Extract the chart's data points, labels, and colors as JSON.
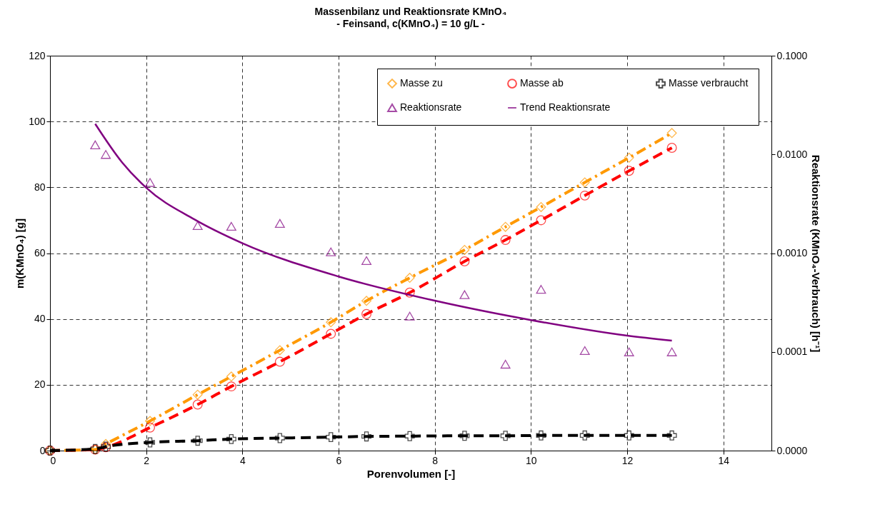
{
  "chart_data": {
    "type": "line",
    "title": "Massenbilanz und Reaktionsrate KMnO₄",
    "subtitle": "- Feinsand, c(KMnO₄) = 10 g/L -",
    "xlabel": "Porenvolumen [-]",
    "ylabel": "m(KMnO₄) [g]",
    "y2label": "Reaktionsrate (KMnO₄-Verbrauch) [h⁻¹]",
    "x": [
      0,
      0.94,
      1.16,
      2.08,
      3.07,
      3.77,
      4.78,
      5.84,
      6.58,
      7.48,
      8.62,
      9.47,
      10.21,
      11.12,
      12.04,
      12.93
    ],
    "series": [
      {
        "name": "Masse zu",
        "color": "#ff9900",
        "marker": "diamond",
        "line_style": "dashdot",
        "values": [
          0,
          0.3,
          2,
          9,
          17,
          22.5,
          30.5,
          39,
          45.5,
          52.5,
          61,
          68,
          74,
          81.5,
          89,
          96.5
        ]
      },
      {
        "name": "Masse ab",
        "color": "#ff0000",
        "marker": "circle",
        "line_style": "dashed",
        "values": [
          0,
          0.3,
          1,
          7,
          14,
          19.5,
          27,
          35.5,
          41.5,
          48,
          57.5,
          64,
          70,
          77.5,
          85,
          92
        ]
      },
      {
        "name": "Masse verbraucht",
        "color": "#000000",
        "marker": "cross",
        "line_style": "dashed",
        "values": [
          0,
          0.5,
          1.2,
          2.5,
          3,
          3.5,
          3.8,
          4.1,
          4.3,
          4.4,
          4.5,
          4.5,
          4.6,
          4.6,
          4.6,
          4.6
        ]
      },
      {
        "name": "Reaktionsrate",
        "color": "#800080",
        "type": "scatter",
        "marker": "triangle",
        "axis": "y2",
        "values": [
          null,
          0.0125,
          0.01,
          0.0052,
          0.0019,
          0.00187,
          0.002,
          0.00103,
          0.00084,
          0.00023,
          0.00038,
          7.5e-05,
          0.00043,
          0.000103,
          0.0001,
          0.0001
        ]
      },
      {
        "name": "Trend Reaktionsrate",
        "color": "#800080",
        "type": "line",
        "marker": "none",
        "line_style": "solid",
        "axis": "y2",
        "x": [
          0.94,
          1.5,
          2,
          3,
          4,
          6,
          8,
          10,
          12,
          12.93
        ],
        "values": [
          0.0204,
          0.0083,
          0.0046,
          0.0022,
          0.00126,
          0.00058,
          0.00033,
          0.00021,
          0.000146,
          0.00013
        ]
      }
    ],
    "xlim": [
      0,
      15
    ],
    "xticks": [
      0,
      2,
      4,
      6,
      8,
      10,
      12,
      14
    ],
    "ylim": [
      0,
      120
    ],
    "yticks": [
      0,
      20,
      40,
      60,
      80,
      100,
      120
    ],
    "log": "y2",
    "y2lim": [
      1e-05,
      0.1
    ],
    "y2ticks": [
      {
        "value": 1e-05,
        "label": "0.0000"
      },
      {
        "value": 0.0001,
        "label": "0.0001"
      },
      {
        "value": 0.001,
        "label": "0.0010"
      },
      {
        "value": 0.01,
        "label": "0.0100"
      },
      {
        "value": 0.1,
        "label": "0.1000"
      }
    ],
    "grid": true,
    "legend": "top right"
  }
}
